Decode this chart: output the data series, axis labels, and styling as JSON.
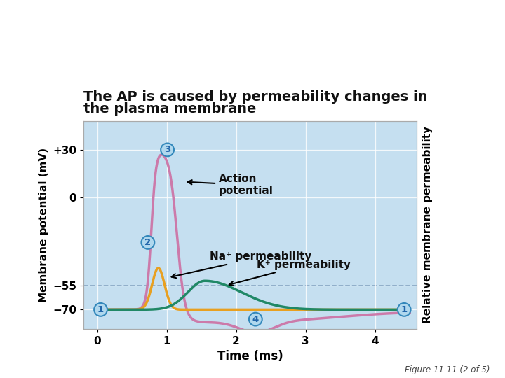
{
  "title_line1": "The AP is caused by permeability changes in",
  "title_line2": "the plasma membrane",
  "xlabel": "Time (ms)",
  "ylabel_left": "Membrane potential (mV)",
  "ylabel_right": "Relative membrane permeability",
  "xlim": [
    -0.2,
    4.6
  ],
  "ylim": [
    -82,
    48
  ],
  "yticks": [
    -70,
    -55,
    0,
    30
  ],
  "ytick_labels": [
    "−70",
    "−55",
    "0",
    "+30"
  ],
  "xticks": [
    0,
    1,
    2,
    3,
    4
  ],
  "bg_color": "#c5dff0",
  "fig_bg": "#ffffff",
  "action_potential_color": "#cc7aaa",
  "na_color": "#e8a020",
  "k_color": "#208866",
  "dashed_line_y": -55,
  "dashed_color": "#7799bb",
  "circle_bg": "#b0d8ee",
  "circle_edge": "#3388bb",
  "circle_text_color": "#2266aa",
  "figure_caption": "Figure 11.11 (2 of 5)",
  "title_fontsize": 14,
  "axis_fontsize": 11,
  "label_fontsize": 11,
  "ann_fontsize": 11
}
